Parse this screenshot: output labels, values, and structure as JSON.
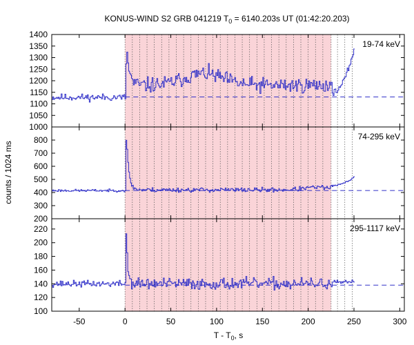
{
  "chart_data": {
    "type": "line",
    "title_prefix": "KONUS-WIND S2 GRB 041219 T",
    "title_sub": "0",
    "title_suffix": " = 6140.203s UT (01:42:20.203)",
    "xlabel_prefix": "T - T",
    "xlabel_sub": "0",
    "xlabel_suffix": ", s",
    "ylabel": "counts / 1024 ms",
    "xlim": [
      -80,
      305
    ],
    "xticks": [
      -50,
      0,
      50,
      100,
      150,
      200,
      250,
      300
    ],
    "shaded_interval": [
      0,
      225
    ],
    "shaded_color": "#fad4d8",
    "dotted_lines": [
      0,
      8,
      16,
      24,
      32,
      40,
      48,
      56,
      64,
      72,
      80,
      88,
      96,
      104,
      112,
      120,
      128,
      136,
      144,
      152,
      160,
      168,
      176,
      184,
      192,
      200,
      208,
      216,
      225,
      232,
      240,
      248
    ],
    "line_color": "#3030c8",
    "panels": [
      {
        "label": "19-74 keV",
        "ylim": [
          1000,
          1400
        ],
        "yticks": [
          1000,
          1050,
          1100,
          1150,
          1200,
          1250,
          1300,
          1350,
          1400
        ],
        "background": 1130,
        "seed": 11,
        "series": {
          "pre": 1128,
          "pre_noise": 16,
          "peak_t": 1.5,
          "peak": 1335,
          "decay": 3,
          "during": 1180,
          "during_noise": 35,
          "hump_center": 85,
          "hump_amp": 50,
          "hump_width": 30,
          "post_start": 226,
          "post_end": 250,
          "post_from": 1150,
          "post_to": 1340
        }
      },
      {
        "label": "74-295 keV",
        "ylim": [
          200,
          900
        ],
        "yticks": [
          200,
          300,
          400,
          500,
          600,
          700,
          800
        ],
        "background": 415,
        "seed": 23,
        "series": {
          "pre": 415,
          "pre_noise": 10,
          "peak_t": 1.0,
          "peak": 850,
          "decay": 2.5,
          "during": 420,
          "during_noise": 18,
          "hump_center": 210,
          "hump_amp": 20,
          "hump_width": 20,
          "post_start": 224,
          "post_end": 250,
          "post_from": 450,
          "post_to": 520
        }
      },
      {
        "label": "295-1117 keV",
        "ylim": [
          100,
          235
        ],
        "yticks": [
          100,
          120,
          140,
          160,
          180,
          200,
          220
        ],
        "background": 138,
        "seed": 37,
        "series": {
          "pre": 140,
          "pre_noise": 5,
          "peak_t": 1.0,
          "peak": 222,
          "decay": 1.5,
          "during": 140,
          "during_noise": 9,
          "hump_center": 100,
          "hump_amp": 0,
          "hump_width": 30,
          "post_start": 226,
          "post_end": 250,
          "post_from": 142,
          "post_to": 142
        }
      }
    ]
  }
}
